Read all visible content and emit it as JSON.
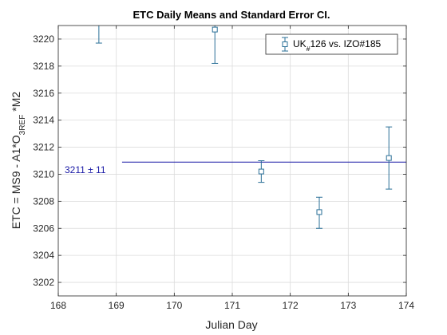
{
  "chart_data": {
    "type": "scatter",
    "title": "ETC Daily Means and Standard Error CI.",
    "xlabel": "Julian Day",
    "ylabel": {
      "parts": [
        {
          "text": "ETC =  MS9 - A1*O"
        },
        {
          "text": "3REF",
          "sub": true
        },
        {
          "text": " *M2"
        }
      ]
    },
    "xlim": [
      168,
      174
    ],
    "ylim": [
      3201,
      3221
    ],
    "xticks": [
      168,
      169,
      170,
      171,
      172,
      173,
      174
    ],
    "yticks": [
      3202,
      3204,
      3206,
      3208,
      3210,
      3212,
      3214,
      3216,
      3218,
      3220
    ],
    "grid": true,
    "legend": {
      "position": "top-right",
      "parts": [
        {
          "text": "UK"
        },
        {
          "text": "#",
          "sub": true
        },
        {
          "text": "126 vs. IZO#185"
        }
      ]
    },
    "series": [
      {
        "color": "#2a6f97",
        "marker": "square",
        "x": [
          168.7,
          170.7,
          171.5,
          172.5,
          173.7
        ],
        "y": [
          3221.4,
          3220.7,
          3210.2,
          3207.2,
          3211.2
        ],
        "err_low": [
          3219.7,
          3218.2,
          3209.4,
          3206.0,
          3208.9
        ],
        "err_high": [
          3223.0,
          3223.0,
          3211.0,
          3208.3,
          3213.5
        ]
      }
    ],
    "reference_line": {
      "y": 3210.9,
      "x_start": 169.1,
      "color": "#1a1aa6",
      "label": "3211 ± 11"
    }
  }
}
